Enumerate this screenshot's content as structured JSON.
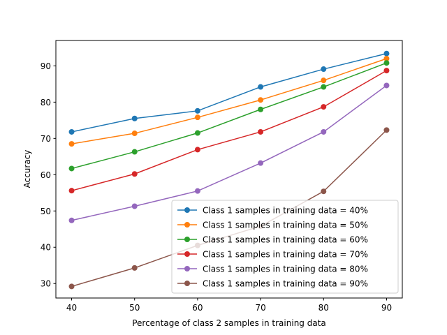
{
  "chart_data": {
    "type": "line",
    "title": "",
    "xlabel": "Percentage of class 2 samples in training data",
    "ylabel": "Accuracy",
    "x": [
      40,
      50,
      60,
      70,
      80,
      90
    ],
    "xlim": [
      37.5,
      92.5
    ],
    "ylim": [
      26,
      97
    ],
    "xticks": [
      40,
      50,
      60,
      70,
      80,
      90
    ],
    "yticks": [
      30,
      40,
      50,
      60,
      70,
      80,
      90
    ],
    "grid": false,
    "legend_position": "lower-right",
    "series": [
      {
        "name": "Class 1 samples in training data = 40%",
        "color": "#1f77b4",
        "values": [
          71.8,
          75.5,
          77.6,
          84.2,
          89.1,
          93.4
        ]
      },
      {
        "name": "Class 1 samples in training data = 50%",
        "color": "#ff7f0e",
        "values": [
          68.5,
          71.4,
          75.8,
          80.6,
          86.0,
          92.0
        ]
      },
      {
        "name": "Class 1 samples in training data = 60%",
        "color": "#2ca02c",
        "values": [
          61.7,
          66.3,
          71.5,
          78.0,
          84.2,
          90.8
        ]
      },
      {
        "name": "Class 1 samples in training data = 70%",
        "color": "#d62728",
        "values": [
          55.6,
          60.2,
          66.9,
          71.8,
          78.7,
          88.7
        ]
      },
      {
        "name": "Class 1 samples in training data = 80%",
        "color": "#9467bd",
        "values": [
          47.4,
          51.3,
          55.5,
          63.2,
          71.8,
          84.6
        ]
      },
      {
        "name": "Class 1 samples in training data = 90%",
        "color": "#8c564b",
        "values": [
          29.2,
          34.3,
          40.5,
          45.8,
          55.4,
          72.3
        ]
      }
    ]
  }
}
